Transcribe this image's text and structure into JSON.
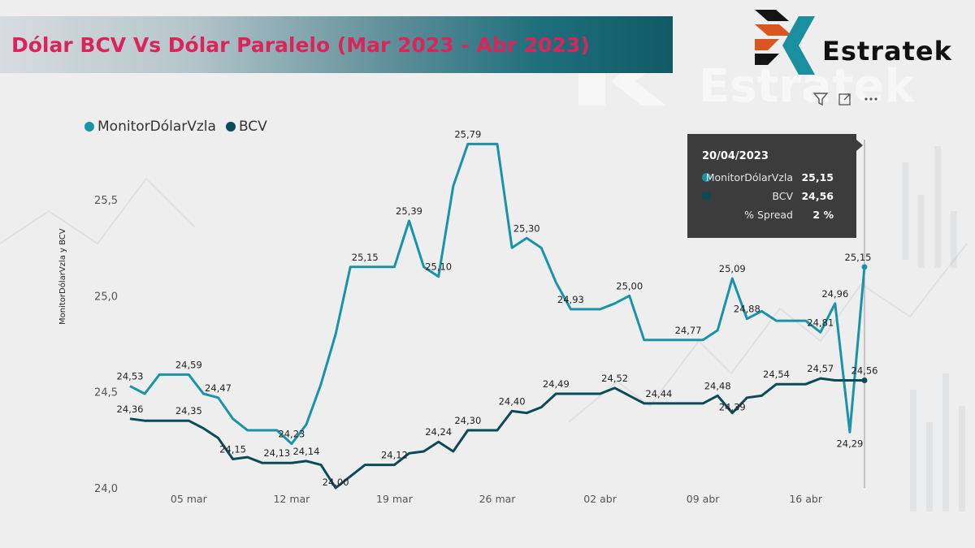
{
  "header": {
    "title": "Dólar BCV Vs Dólar Paralelo (Mar 2023 - Abr 2023)",
    "logo_text": "Estratek",
    "watermark_text": "Estratek"
  },
  "toolbar": {
    "icons": [
      "filter-icon",
      "focus-mode-icon",
      "more-options-icon"
    ]
  },
  "colors": {
    "monitor": "#1a93a8",
    "bcv": "#0b4a57",
    "title": "#d9265a",
    "tooltip_bg": "#3c3c3c"
  },
  "tooltip": {
    "date": "20/04/2023",
    "rows": [
      {
        "name": "MonitorDólarVzla",
        "value": "25,15"
      },
      {
        "name": "BCV",
        "value": "24,56"
      },
      {
        "name": "% Spread",
        "value": "2 %"
      }
    ]
  },
  "chart_data": {
    "type": "line",
    "x": [
      "2023-03-01",
      "2023-03-02",
      "2023-03-03",
      "2023-03-04",
      "2023-03-05",
      "2023-03-06",
      "2023-03-07",
      "2023-03-08",
      "2023-03-09",
      "2023-03-10",
      "2023-03-11",
      "2023-03-12",
      "2023-03-13",
      "2023-03-14",
      "2023-03-15",
      "2023-03-16",
      "2023-03-17",
      "2023-03-18",
      "2023-03-19",
      "2023-03-20",
      "2023-03-21",
      "2023-03-22",
      "2023-03-23",
      "2023-03-24",
      "2023-03-25",
      "2023-03-26",
      "2023-03-27",
      "2023-03-28",
      "2023-03-29",
      "2023-03-30",
      "2023-03-31",
      "2023-04-01",
      "2023-04-02",
      "2023-04-03",
      "2023-04-04",
      "2023-04-05",
      "2023-04-06",
      "2023-04-07",
      "2023-04-08",
      "2023-04-09",
      "2023-04-10",
      "2023-04-11",
      "2023-04-12",
      "2023-04-13",
      "2023-04-14",
      "2023-04-15",
      "2023-04-16",
      "2023-04-17",
      "2023-04-18",
      "2023-04-19",
      "2023-04-20"
    ],
    "series": [
      {
        "name": "MonitorDólarVzla",
        "values": [
          24.53,
          24.49,
          24.59,
          24.59,
          24.59,
          24.49,
          24.47,
          24.36,
          24.3,
          24.3,
          24.3,
          24.23,
          24.33,
          24.54,
          24.8,
          25.15,
          25.15,
          25.15,
          25.15,
          25.39,
          25.15,
          25.1,
          25.57,
          25.79,
          25.79,
          25.79,
          25.25,
          25.3,
          25.25,
          25.07,
          24.93,
          24.93,
          24.93,
          24.96,
          25.0,
          24.77,
          24.77,
          24.77,
          24.77,
          24.77,
          24.82,
          25.09,
          24.88,
          24.92,
          24.87,
          24.87,
          24.87,
          24.81,
          24.96,
          24.29,
          25.15
        ]
      },
      {
        "name": "BCV",
        "values": [
          24.36,
          24.35,
          24.35,
          24.35,
          24.35,
          24.31,
          24.26,
          24.15,
          24.16,
          24.13,
          24.13,
          24.13,
          24.14,
          24.12,
          24.0,
          24.06,
          24.12,
          24.12,
          24.12,
          24.18,
          24.19,
          24.24,
          24.19,
          24.3,
          24.3,
          24.3,
          24.4,
          24.39,
          24.42,
          24.49,
          24.49,
          24.49,
          24.49,
          24.52,
          24.48,
          24.44,
          24.44,
          24.44,
          24.44,
          24.44,
          24.48,
          24.39,
          24.47,
          24.48,
          24.54,
          24.54,
          24.54,
          24.57,
          24.56,
          24.56,
          24.56
        ]
      }
    ],
    "data_labels": [
      {
        "series": 0,
        "index": 0,
        "text": "24,53"
      },
      {
        "series": 0,
        "index": 4,
        "text": "24,59"
      },
      {
        "series": 0,
        "index": 6,
        "text": "24,47"
      },
      {
        "series": 0,
        "index": 11,
        "text": "24,23"
      },
      {
        "series": 0,
        "index": 16,
        "text": "25,15"
      },
      {
        "series": 0,
        "index": 19,
        "text": "25,39"
      },
      {
        "series": 0,
        "index": 21,
        "text": "25,10"
      },
      {
        "series": 0,
        "index": 23,
        "text": "25,79"
      },
      {
        "series": 0,
        "index": 27,
        "text": "25,30"
      },
      {
        "series": 0,
        "index": 30,
        "text": "24,93"
      },
      {
        "series": 0,
        "index": 34,
        "text": "25,00"
      },
      {
        "series": 0,
        "index": 38,
        "text": "24,77"
      },
      {
        "series": 0,
        "index": 41,
        "text": "25,09"
      },
      {
        "series": 0,
        "index": 42,
        "text": "24,88"
      },
      {
        "series": 0,
        "index": 47,
        "text": "24,81"
      },
      {
        "series": 0,
        "index": 48,
        "text": "24,96"
      },
      {
        "series": 0,
        "index": 49,
        "text": "24,29"
      },
      {
        "series": 0,
        "index": 50,
        "text": "25,15"
      },
      {
        "series": 1,
        "index": 0,
        "text": "24,36"
      },
      {
        "series": 1,
        "index": 4,
        "text": "24,35"
      },
      {
        "series": 1,
        "index": 7,
        "text": "24,15"
      },
      {
        "series": 1,
        "index": 10,
        "text": "24,13"
      },
      {
        "series": 1,
        "index": 12,
        "text": "24,14"
      },
      {
        "series": 1,
        "index": 14,
        "text": "24,00"
      },
      {
        "series": 1,
        "index": 18,
        "text": "24,12"
      },
      {
        "series": 1,
        "index": 21,
        "text": "24,24"
      },
      {
        "series": 1,
        "index": 23,
        "text": "24,30"
      },
      {
        "series": 1,
        "index": 26,
        "text": "24,40"
      },
      {
        "series": 1,
        "index": 29,
        "text": "24,49"
      },
      {
        "series": 1,
        "index": 33,
        "text": "24,52"
      },
      {
        "series": 1,
        "index": 36,
        "text": "24,44"
      },
      {
        "series": 1,
        "index": 40,
        "text": "24,48"
      },
      {
        "series": 1,
        "index": 41,
        "text": "24,39"
      },
      {
        "series": 1,
        "index": 44,
        "text": "24,54"
      },
      {
        "series": 1,
        "index": 47,
        "text": "24,57"
      },
      {
        "series": 1,
        "index": 50,
        "text": "24,56"
      }
    ],
    "ylabel": "MonitorDólarVzla y BCV",
    "xlabel": "",
    "ylim": [
      24.0,
      25.8
    ],
    "yticks": [
      24.0,
      24.5,
      25.0,
      25.5
    ],
    "ytick_labels": [
      "24,0",
      "24,5",
      "25,0",
      "25,5"
    ],
    "xticks": [
      {
        "index": 4,
        "label": "05 mar"
      },
      {
        "index": 11,
        "label": "12 mar"
      },
      {
        "index": 18,
        "label": "19 mar"
      },
      {
        "index": 25,
        "label": "26 mar"
      },
      {
        "index": 32,
        "label": "02 abr"
      },
      {
        "index": 39,
        "label": "09 abr"
      },
      {
        "index": 46,
        "label": "16 abr"
      }
    ],
    "legend": "top-left",
    "highlight_index": 50,
    "grid": false
  }
}
